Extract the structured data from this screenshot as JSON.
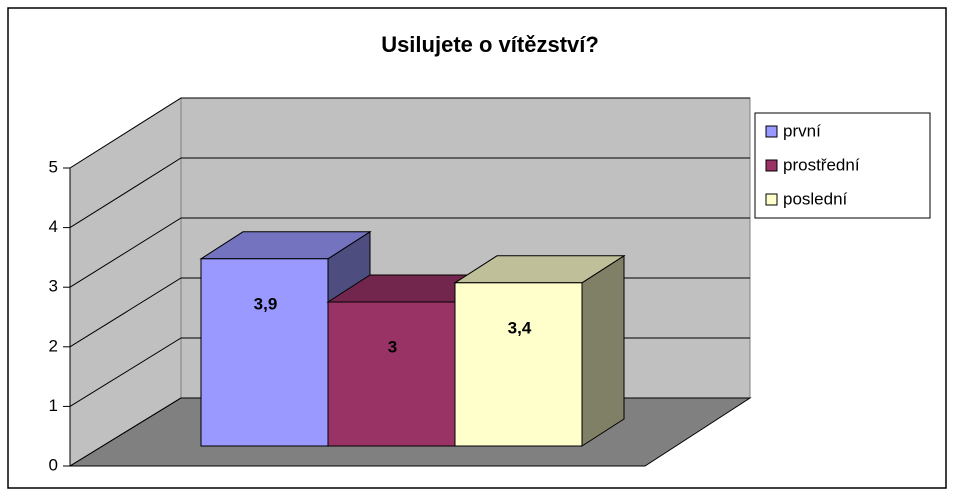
{
  "chart_data": {
    "type": "bar3d",
    "title": "Usilujete o vítězství?",
    "series": [
      {
        "name": "první",
        "color": "#9999ff",
        "values": [
          3.9
        ],
        "value_labels": [
          "3,9"
        ]
      },
      {
        "name": "prostřední",
        "color": "#993366",
        "values": [
          3
        ],
        "value_labels": [
          "3"
        ]
      },
      {
        "name": "poslední",
        "color": "#ffffcc",
        "values": [
          3.4
        ],
        "value_labels": [
          "3,4"
        ]
      }
    ],
    "ylim": [
      0,
      5
    ],
    "yticks": [
      0,
      1,
      2,
      3,
      4,
      5
    ],
    "grid": true,
    "legend": "right"
  }
}
